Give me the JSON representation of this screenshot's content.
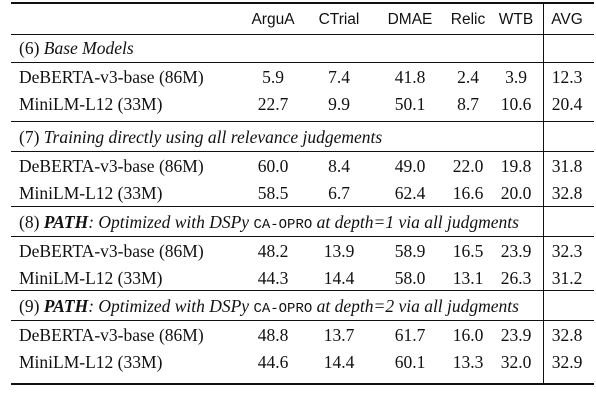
{
  "columns": [
    "ArguA",
    "CTrial",
    "DMAE",
    "Relic",
    "WTB",
    "AVG"
  ],
  "sections": [
    {
      "label_parts": [
        {
          "text": "(6) ",
          "style": "plain"
        },
        {
          "text": "Base Models",
          "style": "italic"
        }
      ],
      "rows": [
        {
          "model": "DeBERTA-v3-base (86M)",
          "values": [
            "5.9",
            "7.4",
            "41.8",
            "2.4",
            "3.9",
            "12.3"
          ]
        },
        {
          "model": "MiniLM-L12 (33M)",
          "values": [
            "22.7",
            "9.9",
            "50.1",
            "8.7",
            "10.6",
            "20.4"
          ]
        }
      ]
    },
    {
      "label_parts": [
        {
          "text": "(7) ",
          "style": "plain"
        },
        {
          "text": "Training directly using all relevance judgements",
          "style": "italic"
        }
      ],
      "rows": [
        {
          "model": "DeBERTA-v3-base (86M)",
          "values": [
            "60.0",
            "8.4",
            "49.0",
            "22.0",
            "19.8",
            "31.8"
          ]
        },
        {
          "model": "MiniLM-L12 (33M)",
          "values": [
            "58.5",
            "6.7",
            "62.4",
            "16.6",
            "20.0",
            "32.8"
          ]
        }
      ]
    },
    {
      "label_parts": [
        {
          "text": "(8) ",
          "style": "plain"
        },
        {
          "text": "PATH",
          "style": "bold-italic"
        },
        {
          "text": ": Optimized with DSPy ",
          "style": "italic"
        },
        {
          "text": "CA-OPRO",
          "style": "mono"
        },
        {
          "text": " at depth=1 via all judgments",
          "style": "italic"
        }
      ],
      "rows": [
        {
          "model": "DeBERTA-v3-base (86M)",
          "values": [
            "48.2",
            "13.9",
            "58.9",
            "16.5",
            "23.9",
            "32.3"
          ]
        },
        {
          "model": "MiniLM-L12 (33M)",
          "values": [
            "44.3",
            "14.4",
            "58.0",
            "13.1",
            "26.3",
            "31.2"
          ]
        }
      ]
    },
    {
      "label_parts": [
        {
          "text": "(9) ",
          "style": "plain"
        },
        {
          "text": "PATH",
          "style": "bold-italic"
        },
        {
          "text": ": Optimized with DSPy ",
          "style": "italic"
        },
        {
          "text": "CA-OPRO",
          "style": "mono"
        },
        {
          "text": " at depth=2 via all judgments",
          "style": "italic"
        }
      ],
      "rows": [
        {
          "model": "DeBERTA-v3-base (86M)",
          "values": [
            "48.8",
            "13.7",
            "61.7",
            "16.0",
            "23.9",
            "32.8"
          ]
        },
        {
          "model": "MiniLM-L12 (33M)",
          "values": [
            "44.6",
            "14.4",
            "60.1",
            "13.3",
            "32.0",
            "32.9"
          ]
        }
      ]
    }
  ]
}
